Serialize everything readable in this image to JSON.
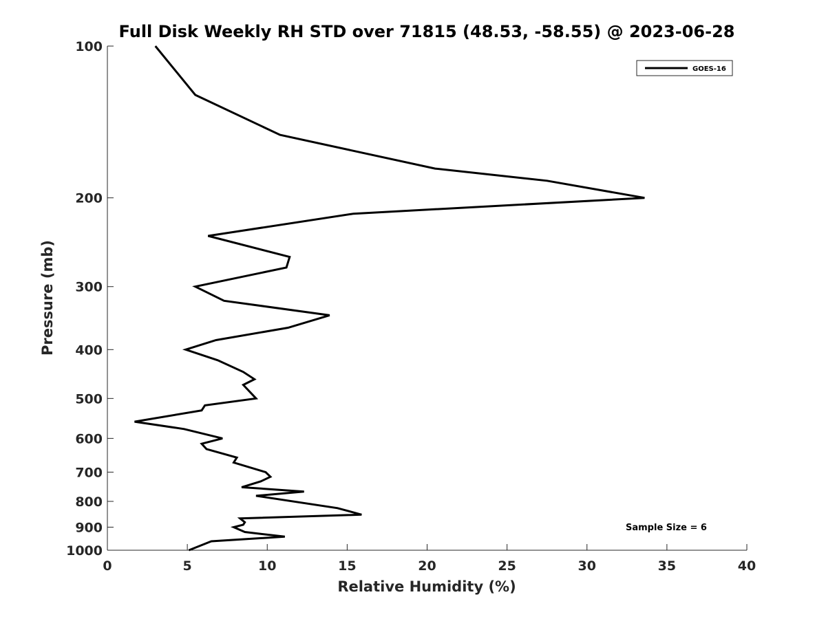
{
  "chart_data": {
    "type": "line",
    "title": "Full Disk Weekly RH STD over 71815 (48.53, -58.55) @ 2023-06-28",
    "xlabel": "Relative Humidity (%)",
    "ylabel": "Pressure (mb)",
    "xlim": [
      0,
      40
    ],
    "ylim": [
      100,
      1000
    ],
    "y_scale": "log",
    "y_reversed": true,
    "x_ticks": [
      0,
      5,
      10,
      15,
      20,
      25,
      30,
      35,
      40
    ],
    "y_ticks": [
      100,
      200,
      300,
      400,
      500,
      600,
      700,
      800,
      900,
      1000
    ],
    "grid": false,
    "legend_position": "top-right",
    "annotation": "Sample Size = 6",
    "series": [
      {
        "name": "GOES-16",
        "color": "#000000",
        "points": [
          [
            3.0,
            100
          ],
          [
            5.5,
            125
          ],
          [
            10.8,
            150
          ],
          [
            20.5,
            175
          ],
          [
            27.5,
            185
          ],
          [
            33.6,
            200
          ],
          [
            15.4,
            215
          ],
          [
            6.3,
            238
          ],
          [
            11.4,
            262
          ],
          [
            11.2,
            275
          ],
          [
            5.5,
            300
          ],
          [
            7.3,
            320
          ],
          [
            13.9,
            342
          ],
          [
            11.3,
            362
          ],
          [
            6.8,
            383
          ],
          [
            4.9,
            400
          ],
          [
            6.9,
            420
          ],
          [
            8.5,
            443
          ],
          [
            9.2,
            458
          ],
          [
            8.5,
            470
          ],
          [
            9.3,
            500
          ],
          [
            6.1,
            516
          ],
          [
            5.9,
            528
          ],
          [
            1.7,
            556
          ],
          [
            4.8,
            575
          ],
          [
            7.2,
            600
          ],
          [
            5.9,
            615
          ],
          [
            6.2,
            630
          ],
          [
            8.1,
            655
          ],
          [
            7.9,
            670
          ],
          [
            9.9,
            700
          ],
          [
            10.2,
            715
          ],
          [
            9.6,
            730
          ],
          [
            8.4,
            750
          ],
          [
            12.3,
            765
          ],
          [
            9.3,
            780
          ],
          [
            14.4,
            825
          ],
          [
            15.9,
            850
          ],
          [
            8.3,
            865
          ],
          [
            8.6,
            880
          ],
          [
            8.5,
            890
          ],
          [
            7.9,
            900
          ],
          [
            8.6,
            920
          ],
          [
            11.1,
            940
          ],
          [
            6.5,
            960
          ],
          [
            5.1,
            1000
          ]
        ]
      }
    ]
  }
}
